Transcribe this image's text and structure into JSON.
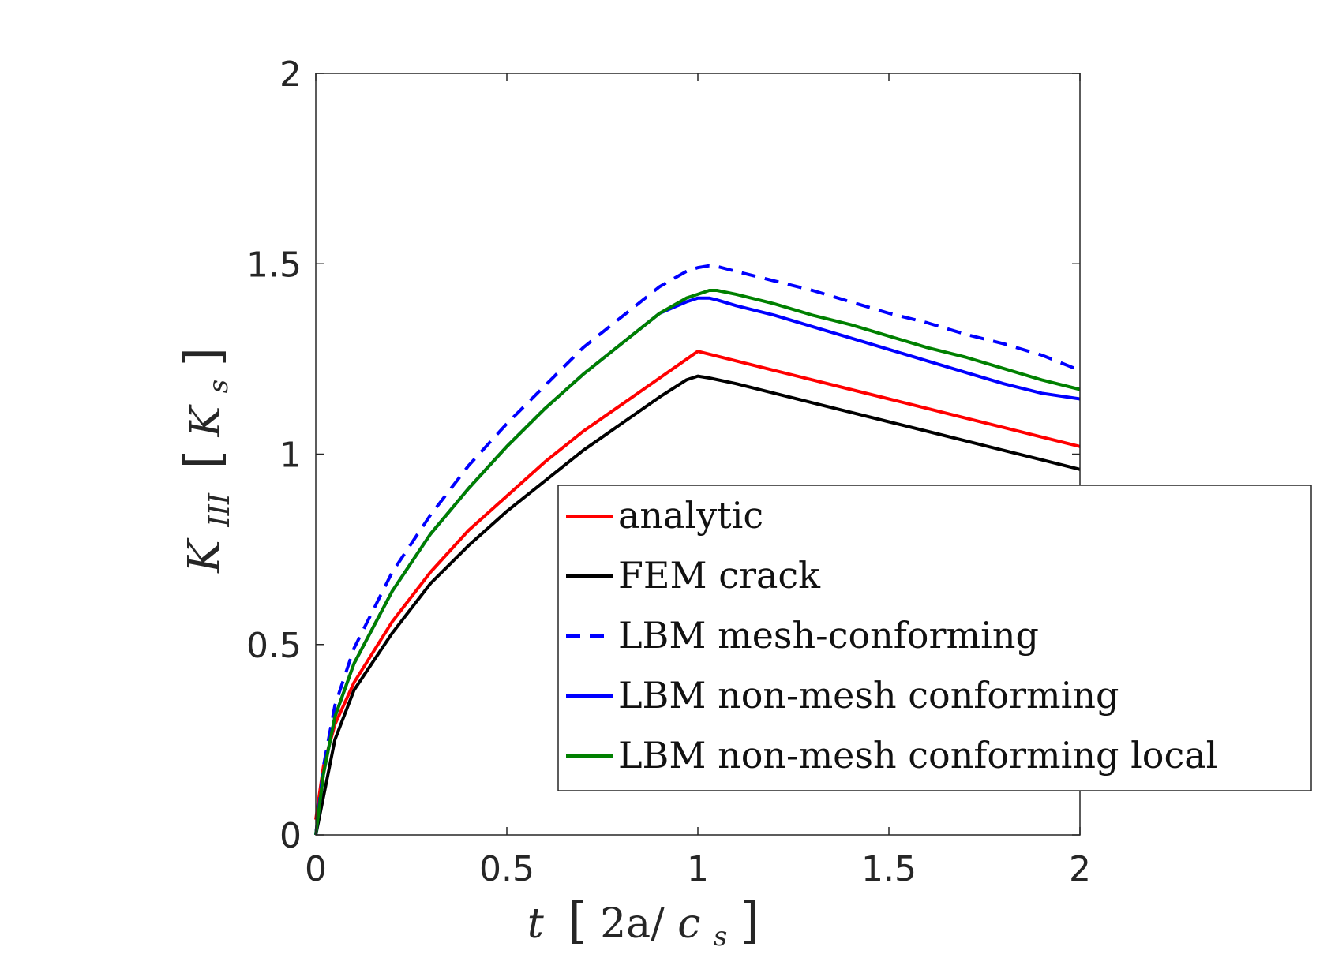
{
  "chart_data": {
    "type": "line",
    "xlabel": {
      "main": "t",
      "bracket_open": "[",
      "unit": "2a/",
      "unit_var": "c",
      "unit_sub": "s",
      "bracket_close": "]"
    },
    "ylabel": {
      "main": "K",
      "sub": "III",
      "bracket_open": "[",
      "unit_var": "K",
      "unit_sub": "s",
      "bracket_close": "]"
    },
    "xlim": [
      0,
      2
    ],
    "ylim": [
      0,
      2
    ],
    "xticks": [
      0,
      0.5,
      1,
      1.5,
      2
    ],
    "xtick_labels": [
      "0",
      "0.5",
      "1",
      "1.5",
      "2"
    ],
    "yticks": [
      0,
      0.5,
      1,
      1.5,
      2
    ],
    "ytick_labels": [
      "0",
      "0.5",
      "1",
      "1.5",
      "2"
    ],
    "grid": false,
    "legend_position": "lower-right",
    "series": [
      {
        "name": "analytic",
        "color": "#ff0000",
        "dash": "solid",
        "x": [
          0,
          0.02,
          0.05,
          0.1,
          0.2,
          0.3,
          0.4,
          0.5,
          0.6,
          0.7,
          0.8,
          0.9,
          1.0,
          1.1,
          1.2,
          1.3,
          1.4,
          1.5,
          1.6,
          1.7,
          1.8,
          1.9,
          2.0
        ],
        "y": [
          0.04,
          0.18,
          0.29,
          0.4,
          0.56,
          0.69,
          0.8,
          0.89,
          0.98,
          1.06,
          1.13,
          1.2,
          1.27,
          1.245,
          1.22,
          1.195,
          1.17,
          1.145,
          1.12,
          1.095,
          1.07,
          1.045,
          1.02
        ]
      },
      {
        "name": "FEM crack",
        "color": "#000000",
        "dash": "solid",
        "x": [
          0,
          0.02,
          0.05,
          0.1,
          0.2,
          0.3,
          0.4,
          0.5,
          0.6,
          0.7,
          0.8,
          0.9,
          0.97,
          1.0,
          1.03,
          1.1,
          1.2,
          1.3,
          1.4,
          1.5,
          1.6,
          1.7,
          1.8,
          1.9,
          2.0
        ],
        "y": [
          0.0,
          0.1,
          0.25,
          0.38,
          0.53,
          0.66,
          0.76,
          0.85,
          0.93,
          1.01,
          1.08,
          1.15,
          1.195,
          1.205,
          1.2,
          1.185,
          1.16,
          1.135,
          1.11,
          1.085,
          1.06,
          1.035,
          1.01,
          0.985,
          0.96
        ]
      },
      {
        "name": "LBM mesh-conforming",
        "color": "#0000ff",
        "dash": "dashed",
        "x": [
          0,
          0.02,
          0.05,
          0.1,
          0.2,
          0.3,
          0.4,
          0.5,
          0.6,
          0.7,
          0.8,
          0.9,
          0.97,
          1.0,
          1.03,
          1.05,
          1.1,
          1.2,
          1.3,
          1.4,
          1.5,
          1.6,
          1.7,
          1.8,
          1.9,
          2.0
        ],
        "y": [
          0.0,
          0.18,
          0.34,
          0.49,
          0.69,
          0.84,
          0.97,
          1.08,
          1.18,
          1.28,
          1.36,
          1.44,
          1.48,
          1.49,
          1.495,
          1.493,
          1.48,
          1.455,
          1.43,
          1.4,
          1.37,
          1.345,
          1.315,
          1.29,
          1.26,
          1.22
        ]
      },
      {
        "name": "LBM non-mesh conforming",
        "color": "#0000ff",
        "dash": "solid",
        "x": [
          0,
          0.02,
          0.05,
          0.1,
          0.2,
          0.3,
          0.4,
          0.5,
          0.6,
          0.7,
          0.8,
          0.9,
          0.97,
          1.0,
          1.03,
          1.05,
          1.1,
          1.2,
          1.3,
          1.4,
          1.5,
          1.6,
          1.7,
          1.8,
          1.9,
          2.0
        ],
        "y": [
          0.0,
          0.16,
          0.31,
          0.45,
          0.64,
          0.79,
          0.91,
          1.02,
          1.12,
          1.21,
          1.29,
          1.37,
          1.4,
          1.41,
          1.41,
          1.405,
          1.39,
          1.365,
          1.335,
          1.305,
          1.275,
          1.245,
          1.215,
          1.185,
          1.16,
          1.145
        ]
      },
      {
        "name": "LBM non-mesh conforming local",
        "color": "#008000",
        "dash": "solid",
        "x": [
          0,
          0.02,
          0.05,
          0.1,
          0.2,
          0.3,
          0.4,
          0.5,
          0.6,
          0.7,
          0.8,
          0.9,
          0.97,
          1.0,
          1.03,
          1.05,
          1.1,
          1.2,
          1.3,
          1.4,
          1.5,
          1.6,
          1.7,
          1.8,
          1.9,
          2.0
        ],
        "y": [
          0.0,
          0.16,
          0.31,
          0.45,
          0.64,
          0.79,
          0.91,
          1.02,
          1.12,
          1.21,
          1.29,
          1.37,
          1.41,
          1.42,
          1.43,
          1.43,
          1.42,
          1.395,
          1.365,
          1.34,
          1.31,
          1.28,
          1.255,
          1.225,
          1.195,
          1.17
        ]
      }
    ]
  }
}
